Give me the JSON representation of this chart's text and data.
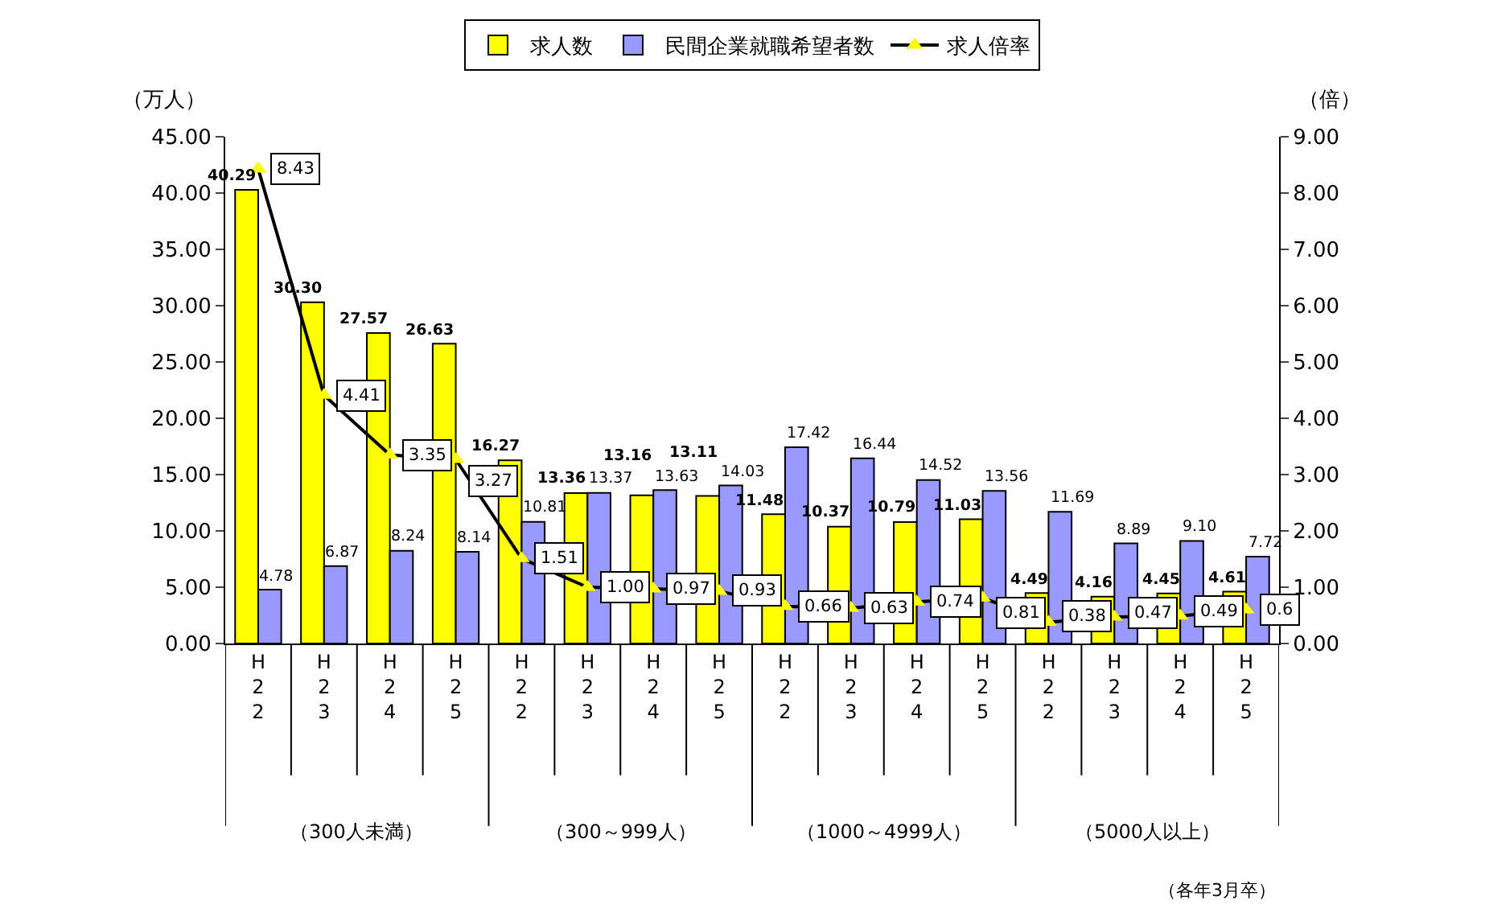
{
  "chart_data": {
    "type": "bar",
    "ylabel": "（万人）",
    "y2label": "（倍）",
    "categories": [
      "H22",
      "H23",
      "H24",
      "H25",
      "H22",
      "H23",
      "H24",
      "H25",
      "H22",
      "H23",
      "H24",
      "H25",
      "H22",
      "H23",
      "H24",
      "H25"
    ],
    "series": [
      {
        "name": "求人数",
        "color": "#ffff00",
        "values": [
          40.29,
          30.3,
          27.57,
          26.63,
          16.27,
          13.36,
          13.16,
          13.11,
          11.48,
          10.37,
          10.79,
          11.03,
          4.49,
          4.16,
          4.45,
          4.61
        ],
        "value_labels": [
          "40.29",
          "30.30",
          "27.57",
          "26.63",
          "16.27",
          "13.36",
          "13.16",
          "13.11",
          "11.48",
          "10.37",
          "10.79",
          "11.03",
          "4.49",
          "4.16",
          "4.45",
          "4.61"
        ]
      },
      {
        "name": "民間企業就職希望者数",
        "color": "#9999ff",
        "values": [
          4.78,
          6.87,
          8.24,
          8.14,
          10.81,
          13.37,
          13.63,
          14.03,
          17.42,
          16.44,
          14.52,
          13.56,
          11.69,
          8.89,
          9.1,
          7.72
        ],
        "value_labels": [
          "4.78",
          "6.87",
          "8.24",
          "8.14",
          "10.81",
          "13.37",
          "13.63",
          "14.03",
          "17.42",
          "16.44",
          "14.52",
          "13.56",
          "11.69",
          "8.89",
          "9.10",
          "7.72"
        ]
      },
      {
        "name": "求人倍率",
        "type": "line",
        "axis": "y2",
        "color": "#000000",
        "marker": "triangle",
        "values": [
          8.43,
          4.41,
          3.35,
          3.27,
          1.51,
          1.0,
          0.97,
          0.93,
          0.66,
          0.63,
          0.74,
          0.81,
          0.38,
          0.47,
          0.49,
          0.6
        ],
        "value_labels": [
          "8.43",
          "4.41",
          "3.35",
          "3.27",
          "1.51",
          "1.00",
          "0.97",
          "0.93",
          "0.66",
          "0.63",
          "0.74",
          "0.81",
          "0.38",
          "0.47",
          "0.49",
          "0.6"
        ]
      }
    ],
    "ylim": [
      0,
      45
    ],
    "yticks": [
      {
        "value": 0,
        "label": "0.00"
      },
      {
        "value": 5,
        "label": "5.00"
      },
      {
        "value": 10,
        "label": "10.00"
      },
      {
        "value": 15,
        "label": "15.00"
      },
      {
        "value": 20,
        "label": "20.00"
      },
      {
        "value": 25,
        "label": "25.00"
      },
      {
        "value": 30,
        "label": "30.00"
      },
      {
        "value": 35,
        "label": "35.00"
      },
      {
        "value": 40,
        "label": "40.00"
      },
      {
        "value": 45,
        "label": "45.00"
      }
    ],
    "y2lim": [
      0,
      9
    ],
    "y2ticks": [
      {
        "value": 0,
        "label": "0.00"
      },
      {
        "value": 1,
        "label": "1.00"
      },
      {
        "value": 2,
        "label": "2.00"
      },
      {
        "value": 3,
        "label": "3.00"
      },
      {
        "value": 4,
        "label": "4.00"
      },
      {
        "value": 5,
        "label": "5.00"
      },
      {
        "value": 6,
        "label": "6.00"
      },
      {
        "value": 7,
        "label": "7.00"
      },
      {
        "value": 8,
        "label": "8.00"
      },
      {
        "value": 9,
        "label": "9.00"
      }
    ],
    "annotations": [
      "（300人未満）",
      "（300～999人）",
      "（1000～4999人）",
      "（5000人以上）",
      "（各年3月卒）"
    ],
    "legend": "top"
  }
}
